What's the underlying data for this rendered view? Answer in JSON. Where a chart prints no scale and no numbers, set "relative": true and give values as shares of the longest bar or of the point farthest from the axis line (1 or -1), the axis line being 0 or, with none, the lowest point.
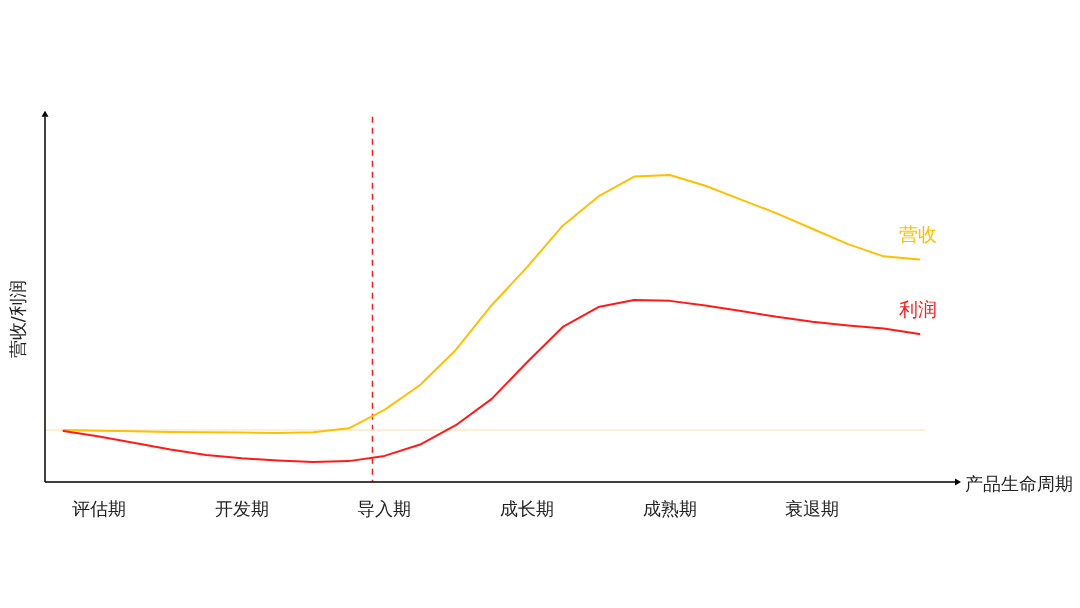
{
  "chart_data": {
    "type": "line",
    "relative": true,
    "ylabel": "营收/利润",
    "xlabel": "产品生命周期",
    "categories": [
      null,
      "评估期",
      null,
      null,
      null,
      "开发期",
      null,
      null,
      null,
      "导入期",
      null,
      null,
      null,
      "成长期",
      null,
      null,
      null,
      "成熟期",
      null,
      null,
      null,
      "衰退期",
      null,
      null,
      null
    ],
    "grid": false,
    "legend": false,
    "marker": "none",
    "line_style": "solid",
    "series": [
      {
        "name": "营收",
        "color": "#ffc000",
        "values": [
          0.169,
          0.167,
          0.165,
          0.163,
          0.162,
          0.161,
          0.16,
          0.162,
          0.175,
          0.235,
          0.316,
          0.43,
          0.575,
          0.7,
          0.835,
          0.93,
          0.995,
          1,
          0.965,
          0.92,
          0.875,
          0.825,
          0.775,
          0.735,
          0.725
        ]
      },
      {
        "name": "利润",
        "color": "#ff1a1a",
        "values": [
          0.166,
          0.148,
          0.127,
          0.106,
          0.088,
          0.077,
          0.07,
          0.065,
          0.068,
          0.085,
          0.122,
          0.185,
          0.27,
          0.39,
          0.505,
          0.57,
          0.593,
          0.59,
          0.575,
          0.557,
          0.538,
          0.522,
          0.51,
          0.5,
          0.482
        ]
      }
    ],
    "ref_lines": [
      {
        "axis": "x",
        "value": "导入期",
        "color": "#ff1a1a",
        "line_style": "dashed"
      },
      {
        "axis": "y",
        "value": 0.169,
        "color": "#fde9c8",
        "line_style": "solid"
      }
    ]
  }
}
